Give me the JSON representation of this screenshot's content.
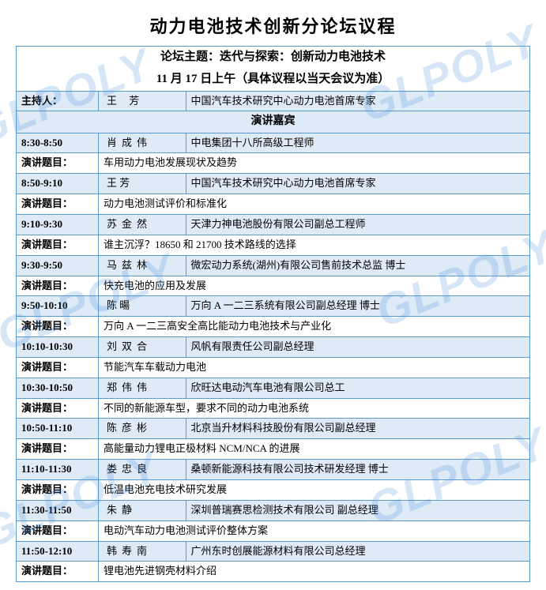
{
  "title": "动力电池技术创新分论坛议程",
  "subtitle": "论坛主题：迭代与探索：创新动力电池技术",
  "date_line": "11 月 17 日上午（具体议程以当天会议为准）",
  "host_label": "主持人：",
  "host_name": "王  芳",
  "host_org": "中国汽车技术研究中心动力电池首席专家",
  "speakers_header": "演讲嘉宾",
  "topic_label": "演讲题目：",
  "watermark_text": "GLPOLY",
  "sessions": [
    {
      "time": "8:30-8:50",
      "name": "肖成伟",
      "org": "中电集团十八所高级工程师",
      "topic": "车用动力电池发展现状及趋势"
    },
    {
      "time": "8:50-9:10",
      "name": "王  芳",
      "org": "中国汽车技术研究中心动力电池首席专家",
      "topic": "动力电池测试评价和标准化"
    },
    {
      "time": "9:10-9:30",
      "name": "苏金然",
      "org": "天津力神电池股份有限公司副总工程师",
      "topic": "谁主沉浮？18650 和 21700 技术路线的选择"
    },
    {
      "time": "9:30-9:50",
      "name": "马兹林",
      "org": "微宏动力系统(湖州)有限公司售前技术总监 博士",
      "topic": "快充电池的应用及发展"
    },
    {
      "time": "9:50-10:10",
      "name": "陈  暘",
      "org": "万向 A 一二三系统有限公司副总经理 博士",
      "topic": "万向 A 一二三高安全高比能动力电池技术与产业化"
    },
    {
      "time": "10:10-10:30",
      "name": "刘双合",
      "org": "风帆有限责任公司副总经理",
      "topic": "节能汽车车载动力电池"
    },
    {
      "time": "10:30-10:50",
      "name": "郑伟伟",
      "org": "欣旺达电动汽车电池有限公司总工",
      "topic": "不同的新能源车型，要求不同的动力电池系统"
    },
    {
      "time": "10:50-11:10",
      "name": "陈彦彬",
      "org": "北京当升材料科技股份有限公司副总经理",
      "topic": "高能量动力锂电正极材料 NCM/NCA 的进展"
    },
    {
      "time": "11:10-11:30",
      "name": "娄忠良",
      "org": "桑顿新能源科技有限公司技术研发经理 博士",
      "topic": "低温电池充电技术研究发展"
    },
    {
      "time": "11:30-11:50",
      "name": "朱静",
      "org": "深圳普瑞赛思检测技术有限公司 副总经理",
      "topic": "电动汽车动力电池测试评价整体方案"
    },
    {
      "time": "11:50-12:10",
      "name": "韩寿南",
      "org": "广州东时创展能源材料有限公司总经理",
      "topic": "锂电池先进钢壳材料介绍"
    }
  ]
}
